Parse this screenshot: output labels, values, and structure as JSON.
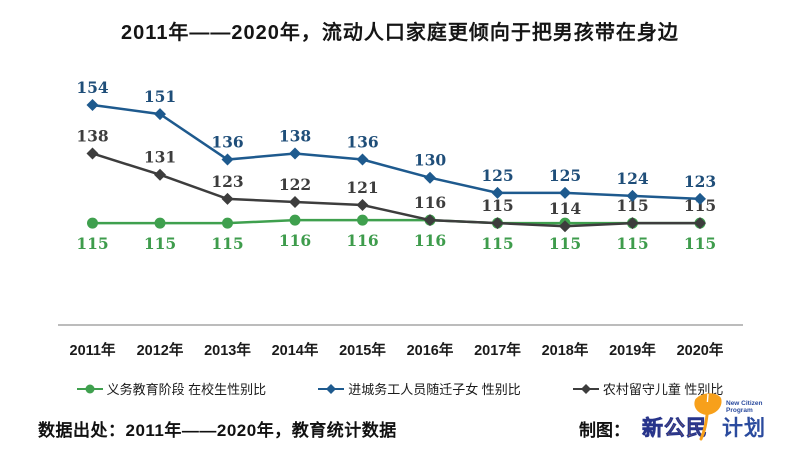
{
  "title": "2011年——2020年，流动人口家庭更倾向于把男孩带在身边",
  "chart_data": {
    "type": "line",
    "title": "2011年——2020年，流动人口家庭更倾向于把男孩带在身边",
    "categories": [
      "2011年",
      "2012年",
      "2013年",
      "2014年",
      "2015年",
      "2016年",
      "2017年",
      "2018年",
      "2019年",
      "2020年"
    ],
    "series": [
      {
        "key": "compulsory-education-enrolled",
        "name": "义务教育阶段 在校生性别比",
        "color": "#3FA04E",
        "label_color": "#3E9C4C",
        "marker": "circle",
        "label_position": "below",
        "values": [
          115,
          115,
          115,
          116,
          116,
          116,
          115,
          115,
          115,
          115
        ]
      },
      {
        "key": "migrant-workers-children",
        "name": "进城务工人员随迁子女 性别比",
        "color": "#1E5A8E",
        "label_color": "#1F4E79",
        "marker": "diamond",
        "label_position": "above",
        "values": [
          154,
          151,
          136,
          138,
          136,
          130,
          125,
          125,
          124,
          123
        ]
      },
      {
        "key": "rural-left-behind-children",
        "name": "农村留守儿童 性别比",
        "color": "#3D3D3D",
        "label_color": "#3D3D3D",
        "marker": "diamond",
        "label_position": "above",
        "values": [
          138,
          131,
          123,
          122,
          121,
          116,
          115,
          114,
          115,
          115
        ]
      }
    ],
    "ylim": [
      110,
      160
    ],
    "grid": false,
    "legend_position": "bottom",
    "xlabel": "",
    "ylabel": ""
  },
  "footer": {
    "source": "数据出处：2011年——2020年，教育统计数据",
    "credit_label": "制图：",
    "logo": {
      "cn_orange": "新公民",
      "cn_blue": "计划",
      "en_line1": "New Citizen",
      "en_line2": "Program"
    }
  },
  "colors": {
    "axis_line": "#A6A6A6",
    "tick_label": "#1a1a1a",
    "logo_orange": "#F7941E",
    "logo_blue": "#2B4B9E"
  }
}
